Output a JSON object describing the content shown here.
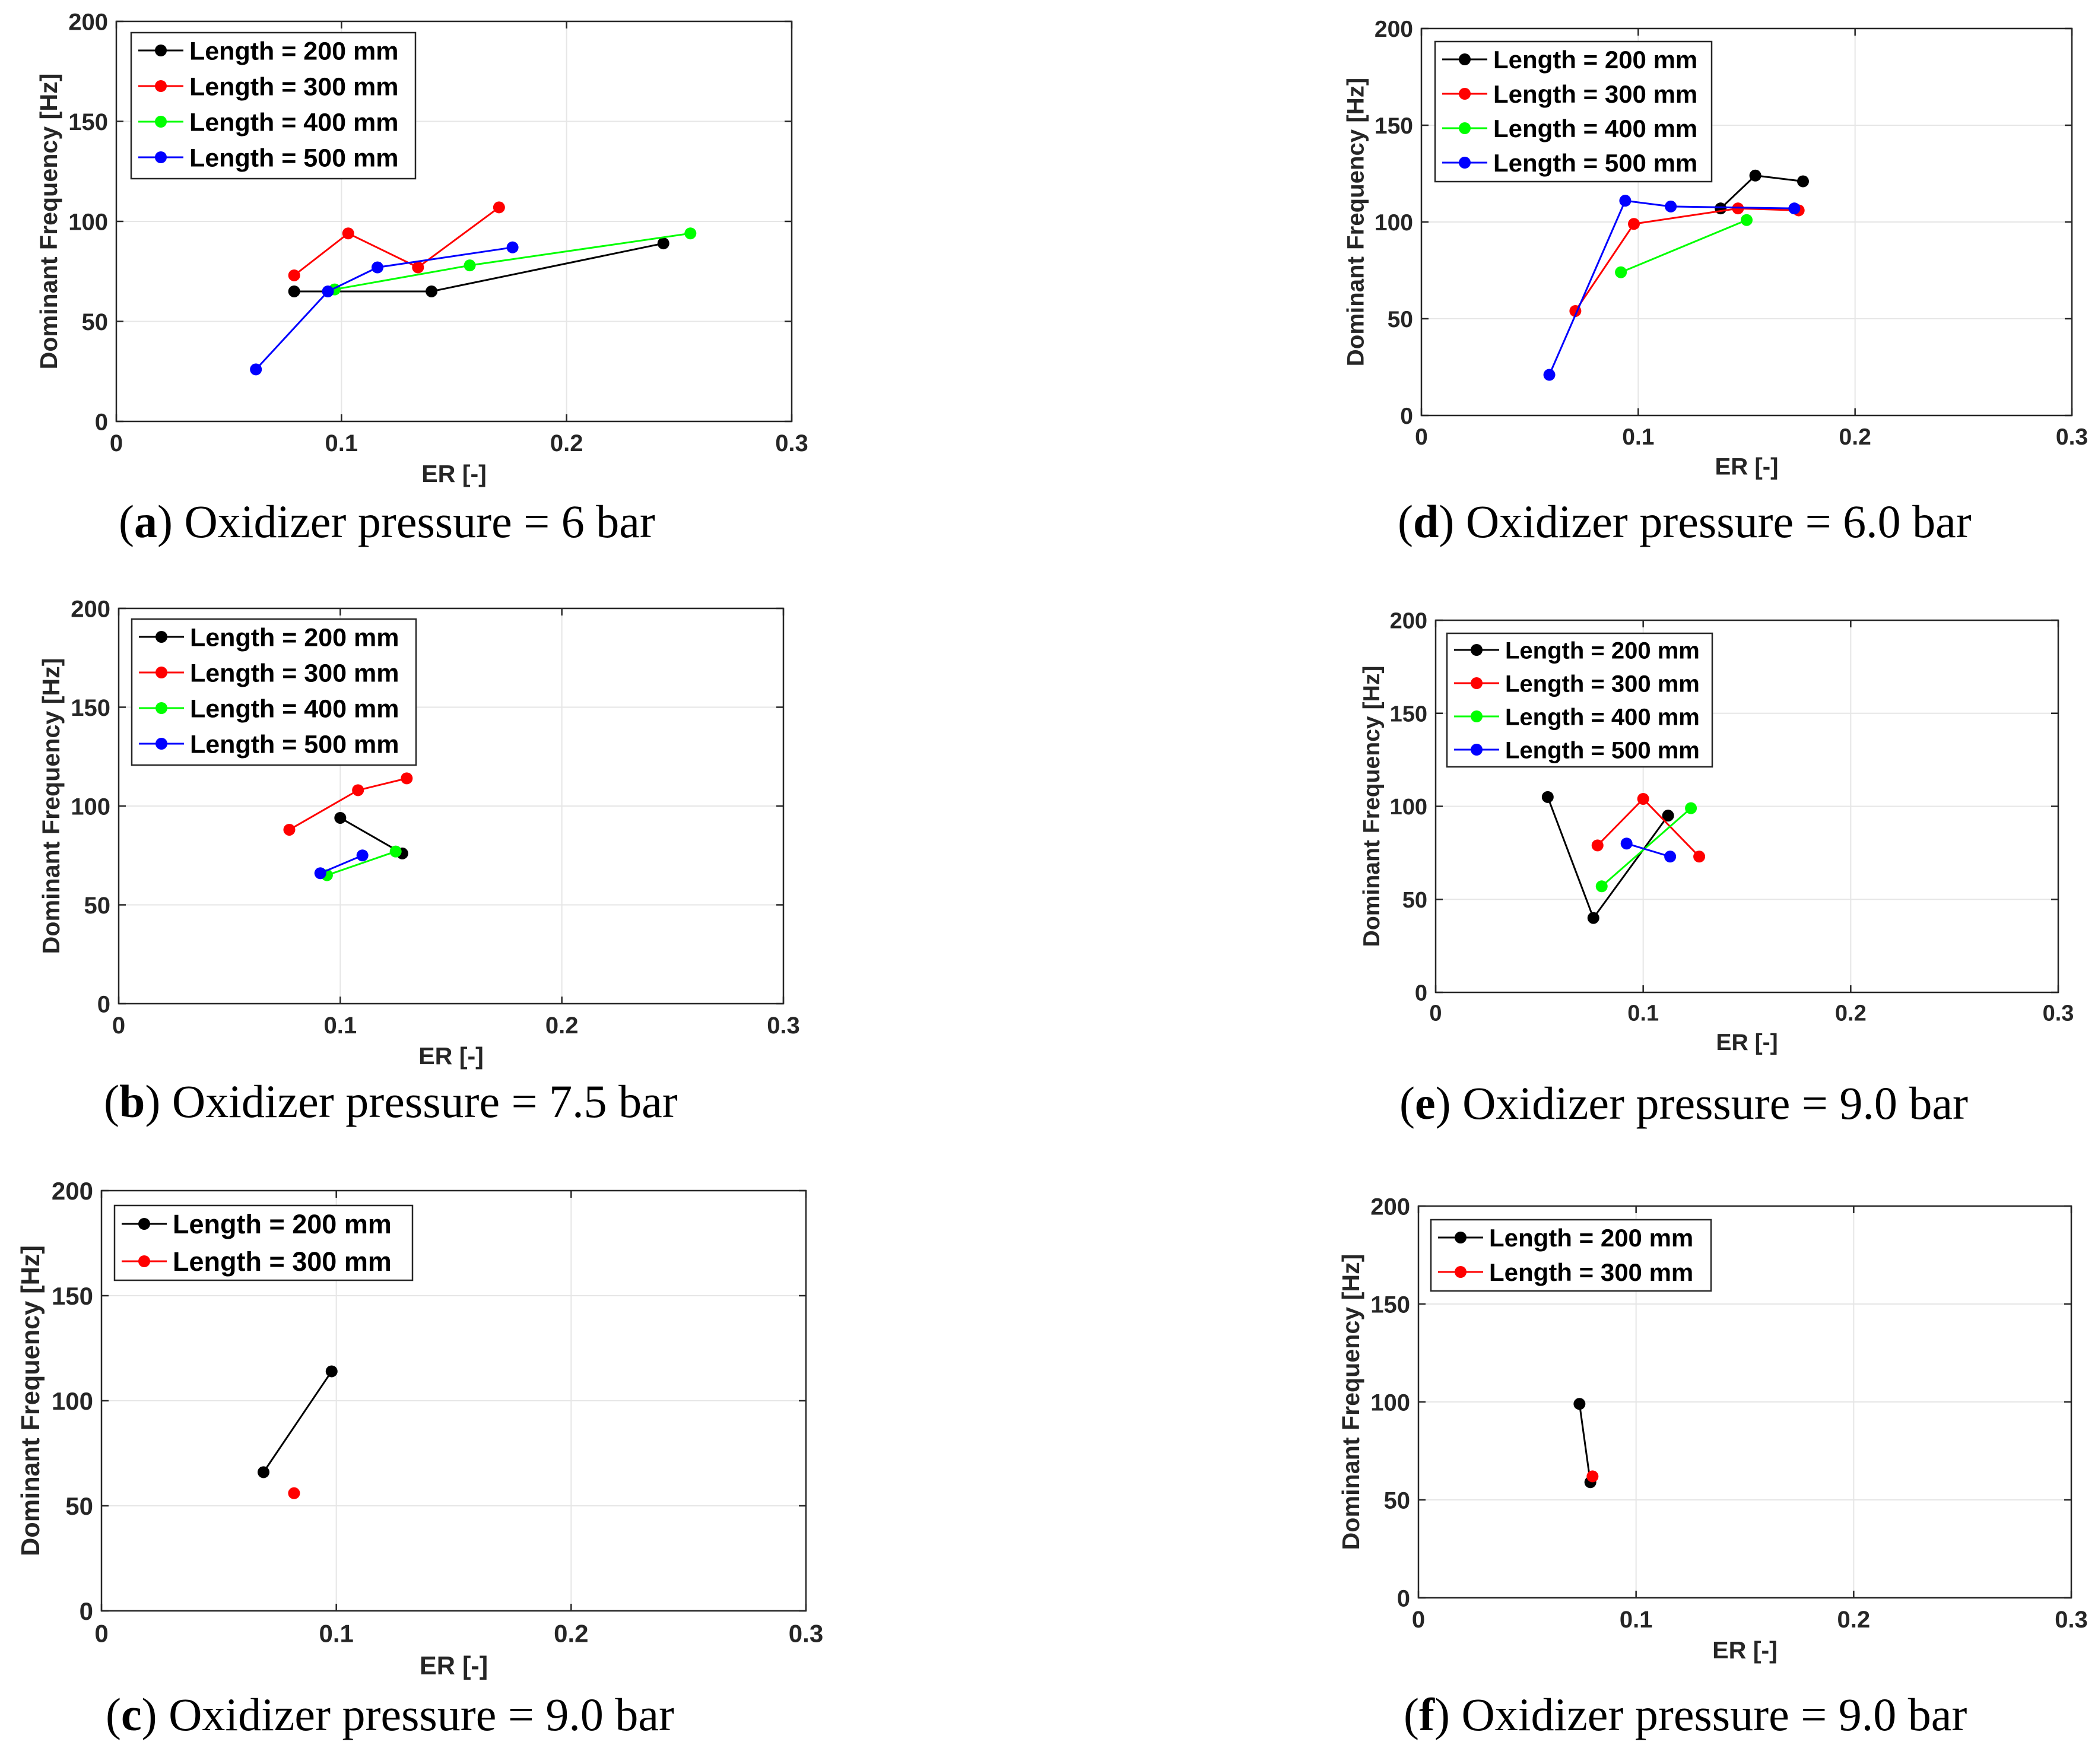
{
  "chart_data": [
    {
      "id": "a",
      "type": "line",
      "caption_letter": "a",
      "caption_text": "Oxidizer pressure = 6 bar",
      "xlabel": "ER [-]",
      "ylabel": "Dominant Frequency [Hz]",
      "xlim": [
        0,
        0.3
      ],
      "ylim": [
        0,
        200
      ],
      "xticks": [
        "0",
        "0.1",
        "0.2",
        "0.3"
      ],
      "yticks": [
        "0",
        "50",
        "100",
        "150",
        "200"
      ],
      "grid": true,
      "legend_position": "top-left",
      "series": [
        {
          "name": "Length = 200 mm",
          "color": "#000000",
          "points": [
            [
              0.079,
              65
            ],
            [
              0.14,
              65
            ],
            [
              0.243,
              89
            ]
          ]
        },
        {
          "name": "Length = 300 mm",
          "color": "#ff0000",
          "points": [
            [
              0.079,
              73
            ],
            [
              0.103,
              94
            ],
            [
              0.134,
              77
            ],
            [
              0.17,
              107
            ]
          ]
        },
        {
          "name": "Length = 400 mm",
          "color": "#00ff00",
          "points": [
            [
              0.097,
              66
            ],
            [
              0.157,
              78
            ],
            [
              0.255,
              94
            ]
          ]
        },
        {
          "name": "Length = 500 mm",
          "color": "#0000ff",
          "points": [
            [
              0.062,
              26
            ],
            [
              0.094,
              65
            ],
            [
              0.116,
              77
            ],
            [
              0.176,
              87
            ]
          ]
        }
      ]
    },
    {
      "id": "b",
      "type": "line",
      "caption_letter": "b",
      "caption_text": "Oxidizer pressure = 7.5 bar",
      "xlabel": "ER [-]",
      "ylabel": "Dominant Frequency [Hz]",
      "xlim": [
        0,
        0.3
      ],
      "ylim": [
        0,
        200
      ],
      "xticks": [
        "0",
        "0.1",
        "0.2",
        "0.3"
      ],
      "yticks": [
        "0",
        "50",
        "100",
        "150",
        "200"
      ],
      "grid": true,
      "legend_position": "top-left",
      "series": [
        {
          "name": "Length = 200 mm",
          "color": "#000000",
          "points": [
            [
              0.1,
              94
            ],
            [
              0.128,
              76
            ]
          ]
        },
        {
          "name": "Length = 300 mm",
          "color": "#ff0000",
          "points": [
            [
              0.077,
              88
            ],
            [
              0.108,
              108
            ],
            [
              0.13,
              114
            ]
          ]
        },
        {
          "name": "Length = 400 mm",
          "color": "#00ff00",
          "points": [
            [
              0.094,
              65
            ],
            [
              0.125,
              77
            ]
          ]
        },
        {
          "name": "Length = 500 mm",
          "color": "#0000ff",
          "points": [
            [
              0.091,
              66
            ],
            [
              0.11,
              75
            ]
          ]
        }
      ]
    },
    {
      "id": "c",
      "type": "line",
      "caption_letter": "c",
      "caption_text": "Oxidizer pressure = 9.0 bar",
      "xlabel": "ER [-]",
      "ylabel": "Dominant Frequency [Hz]",
      "xlim": [
        0,
        0.3
      ],
      "ylim": [
        0,
        200
      ],
      "xticks": [
        "0",
        "0.1",
        "0.2",
        "0.3"
      ],
      "yticks": [
        "0",
        "50",
        "100",
        "150",
        "200"
      ],
      "grid": true,
      "legend_position": "top-left",
      "series": [
        {
          "name": "Length = 200 mm",
          "color": "#000000",
          "points": [
            [
              0.069,
              66
            ],
            [
              0.098,
              114
            ]
          ]
        },
        {
          "name": "Length = 300 mm",
          "color": "#ff0000",
          "points": [
            [
              0.082,
              56
            ]
          ]
        }
      ]
    },
    {
      "id": "d",
      "type": "line",
      "caption_letter": "d",
      "caption_text": "Oxidizer pressure = 6.0 bar",
      "xlabel": "ER [-]",
      "ylabel": "Dominant Frequency [Hz]",
      "xlim": [
        0,
        0.3
      ],
      "ylim": [
        0,
        200
      ],
      "xticks": [
        "0",
        "0.1",
        "0.2",
        "0.3"
      ],
      "yticks": [
        "0",
        "50",
        "100",
        "150",
        "200"
      ],
      "grid": true,
      "legend_position": "top-left",
      "series": [
        {
          "name": "Length = 200 mm",
          "color": "#000000",
          "points": [
            [
              0.138,
              107
            ],
            [
              0.154,
              124
            ],
            [
              0.176,
              121
            ]
          ]
        },
        {
          "name": "Length = 300 mm",
          "color": "#ff0000",
          "points": [
            [
              0.071,
              54
            ],
            [
              0.098,
              99
            ],
            [
              0.146,
              107
            ],
            [
              0.174,
              106
            ]
          ]
        },
        {
          "name": "Length = 400 mm",
          "color": "#00ff00",
          "points": [
            [
              0.092,
              74
            ],
            [
              0.15,
              101
            ]
          ]
        },
        {
          "name": "Length = 500 mm",
          "color": "#0000ff",
          "points": [
            [
              0.059,
              21
            ],
            [
              0.094,
              111
            ],
            [
              0.115,
              108
            ],
            [
              0.172,
              107
            ]
          ]
        }
      ]
    },
    {
      "id": "e",
      "type": "line",
      "caption_letter": "e",
      "caption_text": "Oxidizer pressure = 9.0 bar",
      "xlabel": "ER [-]",
      "ylabel": "Dominant Frequency [Hz]",
      "xlim": [
        0,
        0.3
      ],
      "ylim": [
        0,
        200
      ],
      "xticks": [
        "0",
        "0.1",
        "0.2",
        "0.3"
      ],
      "yticks": [
        "0",
        "50",
        "100",
        "150",
        "200"
      ],
      "grid": true,
      "legend_position": "top-left",
      "series": [
        {
          "name": "Length = 200 mm",
          "color": "#000000",
          "points": [
            [
              0.054,
              105
            ],
            [
              0.076,
              40
            ],
            [
              0.112,
              95
            ]
          ]
        },
        {
          "name": "Length = 300 mm",
          "color": "#ff0000",
          "points": [
            [
              0.078,
              79
            ],
            [
              0.1,
              104
            ],
            [
              0.127,
              73
            ]
          ]
        },
        {
          "name": "Length = 400 mm",
          "color": "#00ff00",
          "points": [
            [
              0.08,
              57
            ],
            [
              0.123,
              99
            ]
          ]
        },
        {
          "name": "Length = 500 mm",
          "color": "#0000ff",
          "points": [
            [
              0.092,
              80
            ],
            [
              0.113,
              73
            ]
          ]
        }
      ]
    },
    {
      "id": "f",
      "type": "line",
      "caption_letter": "f",
      "caption_text": "Oxidizer pressure = 9.0 bar",
      "xlabel": "ER [-]",
      "ylabel": "Dominant Frequency [Hz]",
      "xlim": [
        0,
        0.3
      ],
      "ylim": [
        0,
        200
      ],
      "xticks": [
        "0",
        "0.1",
        "0.2",
        "0.3"
      ],
      "yticks": [
        "0",
        "50",
        "100",
        "150",
        "200"
      ],
      "grid": true,
      "legend_position": "top-left",
      "series": [
        {
          "name": "Length = 200 mm",
          "color": "#000000",
          "points": [
            [
              0.074,
              99
            ],
            [
              0.079,
              59
            ]
          ]
        },
        {
          "name": "Length = 300 mm",
          "color": "#ff0000",
          "points": [
            [
              0.08,
              62
            ]
          ]
        }
      ]
    }
  ]
}
